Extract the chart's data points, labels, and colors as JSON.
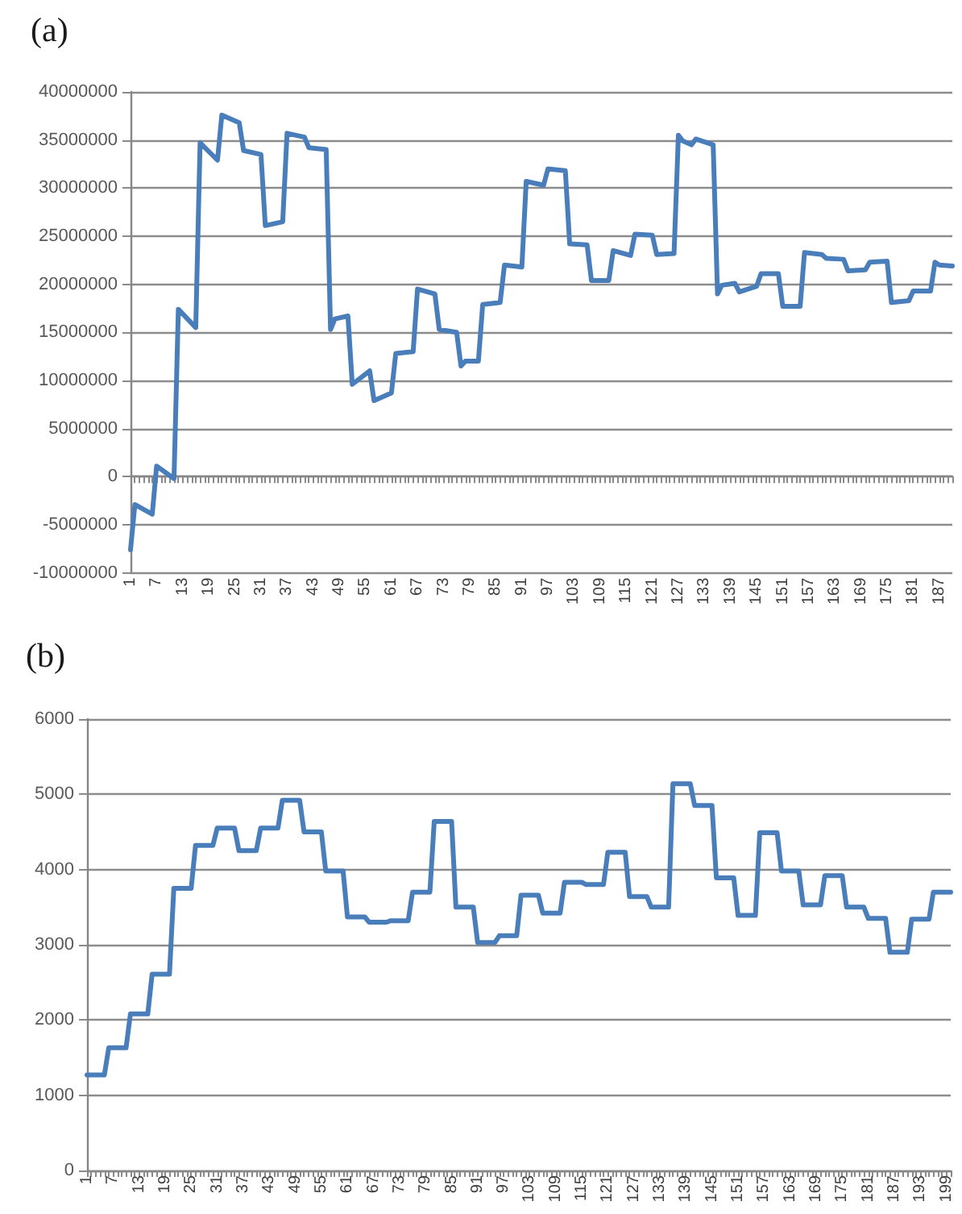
{
  "chart_data": [
    {
      "type": "line",
      "title": "(a)",
      "color": "#4a7ebb",
      "marker": "none",
      "line_style": "solid",
      "grid": "y",
      "x": [
        1,
        2,
        6,
        7,
        11,
        12,
        16,
        17,
        21,
        22,
        26,
        27,
        31,
        32,
        36,
        37,
        41,
        42,
        46,
        47,
        48,
        51,
        52,
        56,
        57,
        61,
        62,
        66,
        67,
        71,
        72,
        76,
        77,
        78,
        81,
        82,
        86,
        87,
        91,
        92,
        96,
        97,
        101,
        102,
        106,
        107,
        111,
        112,
        116,
        117,
        121,
        122,
        126,
        127,
        128,
        130,
        131,
        135,
        136,
        137,
        140,
        141,
        145,
        146,
        150,
        151,
        155,
        156,
        160,
        161,
        165,
        166,
        170,
        171,
        175,
        176,
        180,
        181,
        185,
        186,
        187,
        190
      ],
      "values": [
        -7600000,
        -2900000,
        -3900000,
        1100000,
        -200000,
        17400000,
        15500000,
        34700000,
        32900000,
        37600000,
        36800000,
        33900000,
        33500000,
        26100000,
        26500000,
        35700000,
        35300000,
        34200000,
        34000000,
        15300000,
        16400000,
        16700000,
        9600000,
        11000000,
        7900000,
        8700000,
        12800000,
        13000000,
        19500000,
        19000000,
        15300000,
        15000000,
        11500000,
        12000000,
        12000000,
        17900000,
        18100000,
        22000000,
        21800000,
        30700000,
        30300000,
        32000000,
        31800000,
        24200000,
        24100000,
        20400000,
        20400000,
        23500000,
        23000000,
        25200000,
        25100000,
        23100000,
        23200000,
        35500000,
        34900000,
        34500000,
        35100000,
        34500000,
        19000000,
        19900000,
        20100000,
        19200000,
        19800000,
        21100000,
        21100000,
        17700000,
        17700000,
        23300000,
        23100000,
        22700000,
        22600000,
        21400000,
        21500000,
        22300000,
        22400000,
        18100000,
        18300000,
        19300000,
        19300000,
        22300000,
        22000000,
        21900000
      ],
      "xlim": [
        1,
        190
      ],
      "xticks": [
        1,
        7,
        13,
        19,
        25,
        31,
        37,
        43,
        49,
        55,
        61,
        67,
        73,
        79,
        85,
        91,
        97,
        103,
        109,
        115,
        121,
        127,
        133,
        139,
        145,
        151,
        157,
        163,
        169,
        175,
        181,
        187
      ],
      "ylim": [
        -10000000,
        40000000
      ],
      "yticks": [
        -10000000,
        -5000000,
        0,
        5000000,
        10000000,
        15000000,
        20000000,
        25000000,
        30000000,
        35000000,
        40000000
      ]
    },
    {
      "type": "line",
      "title": "(b)",
      "color": "#4a7ebb",
      "marker": "none",
      "line_style": "solid",
      "grid": "y",
      "x": [
        1,
        5,
        6,
        10,
        11,
        15,
        16,
        20,
        21,
        25,
        26,
        30,
        31,
        35,
        36,
        40,
        41,
        45,
        46,
        50,
        51,
        55,
        56,
        60,
        61,
        65,
        66,
        70,
        71,
        75,
        76,
        80,
        81,
        85,
        86,
        90,
        91,
        95,
        96,
        100,
        101,
        105,
        106,
        110,
        111,
        115,
        116,
        120,
        121,
        125,
        126,
        130,
        131,
        135,
        136,
        140,
        141,
        145,
        146,
        150,
        151,
        155,
        156,
        160,
        161,
        165,
        166,
        170,
        171,
        175,
        176,
        180,
        181,
        185,
        186,
        190,
        191,
        195,
        196,
        200
      ],
      "values": [
        1270,
        1270,
        1630,
        1630,
        2080,
        2080,
        2610,
        2610,
        3750,
        3750,
        4320,
        4320,
        4550,
        4550,
        4250,
        4250,
        4550,
        4550,
        4920,
        4920,
        4500,
        4500,
        3980,
        3980,
        3370,
        3370,
        3300,
        3300,
        3320,
        3320,
        3700,
        3700,
        4640,
        4640,
        3500,
        3500,
        3030,
        3030,
        3120,
        3120,
        3660,
        3660,
        3420,
        3420,
        3830,
        3830,
        3800,
        3800,
        4230,
        4230,
        3640,
        3640,
        3500,
        3500,
        5140,
        5140,
        4850,
        4850,
        3890,
        3890,
        3390,
        3390,
        4490,
        4490,
        3980,
        3980,
        3530,
        3530,
        3920,
        3920,
        3500,
        3500,
        3350,
        3350,
        2900,
        2900,
        3340,
        3340,
        3700,
        3700
      ],
      "xlim": [
        1,
        200
      ],
      "xticks": [
        1,
        7,
        13,
        19,
        25,
        31,
        37,
        43,
        49,
        55,
        61,
        67,
        73,
        79,
        85,
        91,
        97,
        103,
        109,
        115,
        121,
        127,
        133,
        139,
        145,
        151,
        157,
        163,
        169,
        175,
        181,
        187,
        193,
        199
      ],
      "ylim": [
        0,
        6000
      ],
      "yticks": [
        0,
        1000,
        2000,
        3000,
        4000,
        5000,
        6000
      ]
    }
  ]
}
